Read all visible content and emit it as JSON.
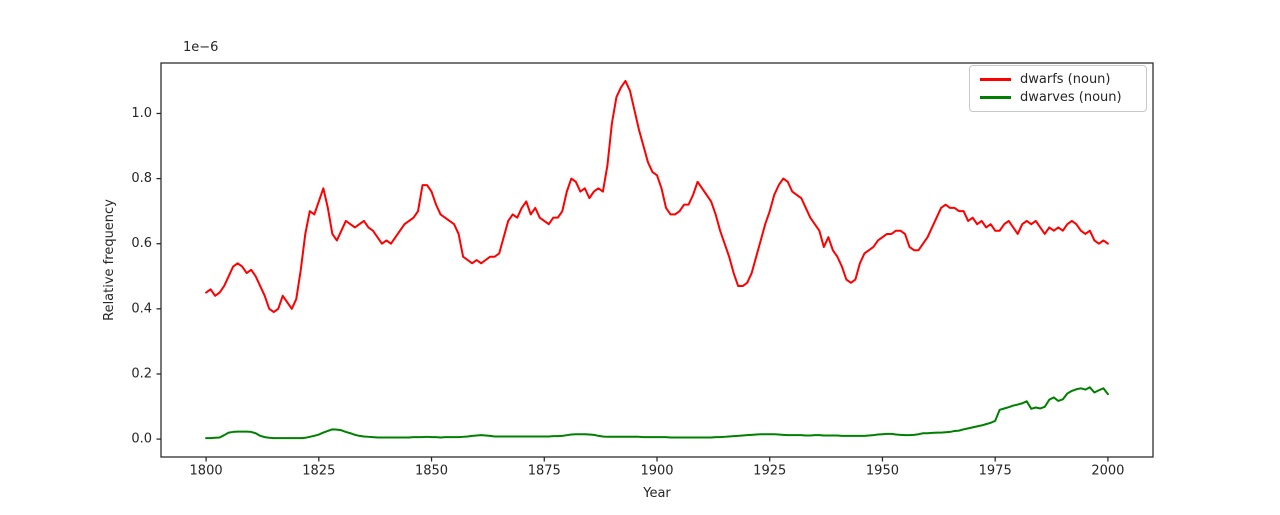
{
  "colors": {
    "background": "#ffffff",
    "text": "#262626",
    "spine": "#262626",
    "legend_border": "#c8c8c8",
    "dwarfs_red": "#ff0000",
    "dwarves_green": "#008000"
  },
  "chart_data": {
    "type": "line",
    "title": "",
    "xlabel": "Year",
    "ylabel": "Relative frequency",
    "offset_text": "1e−6",
    "y_values_unit": "1e-6",
    "grid": false,
    "legend_position": "upper right",
    "xlim": [
      1790,
      2010
    ],
    "ylim": [
      -0.055,
      1.155
    ],
    "xticks": [
      1800,
      1825,
      1850,
      1875,
      1900,
      1925,
      1950,
      1975,
      2000
    ],
    "xtick_labels": [
      "1800",
      "1825",
      "1850",
      "1875",
      "1900",
      "1925",
      "1950",
      "1975",
      "2000"
    ],
    "yticks": [
      0.0,
      0.2,
      0.4,
      0.6,
      0.8,
      1.0
    ],
    "ytick_labels": [
      "0.0",
      "0.2",
      "0.4",
      "0.6",
      "0.8",
      "1.0"
    ],
    "x_start": 1800,
    "x_step": 1,
    "x_end": 2000,
    "series": [
      {
        "name": "dwarfs (noun)",
        "color": "#ff0000",
        "values": [
          0.45,
          0.46,
          0.44,
          0.45,
          0.47,
          0.5,
          0.53,
          0.54,
          0.53,
          0.51,
          0.52,
          0.5,
          0.47,
          0.44,
          0.4,
          0.39,
          0.4,
          0.44,
          0.42,
          0.4,
          0.43,
          0.52,
          0.63,
          0.7,
          0.69,
          0.73,
          0.77,
          0.71,
          0.63,
          0.61,
          0.64,
          0.67,
          0.66,
          0.65,
          0.66,
          0.67,
          0.65,
          0.64,
          0.62,
          0.6,
          0.61,
          0.6,
          0.62,
          0.64,
          0.66,
          0.67,
          0.68,
          0.7,
          0.78,
          0.78,
          0.76,
          0.72,
          0.69,
          0.68,
          0.67,
          0.66,
          0.63,
          0.56,
          0.55,
          0.54,
          0.55,
          0.54,
          0.55,
          0.56,
          0.56,
          0.57,
          0.62,
          0.67,
          0.69,
          0.68,
          0.71,
          0.73,
          0.69,
          0.71,
          0.68,
          0.67,
          0.66,
          0.68,
          0.68,
          0.7,
          0.76,
          0.8,
          0.79,
          0.76,
          0.77,
          0.74,
          0.76,
          0.77,
          0.76,
          0.84,
          0.97,
          1.05,
          1.08,
          1.1,
          1.07,
          1.01,
          0.95,
          0.9,
          0.85,
          0.82,
          0.81,
          0.77,
          0.71,
          0.69,
          0.69,
          0.7,
          0.72,
          0.72,
          0.75,
          0.79,
          0.77,
          0.75,
          0.73,
          0.69,
          0.64,
          0.6,
          0.56,
          0.51,
          0.47,
          0.47,
          0.48,
          0.51,
          0.56,
          0.61,
          0.66,
          0.7,
          0.75,
          0.78,
          0.8,
          0.79,
          0.76,
          0.75,
          0.74,
          0.71,
          0.68,
          0.66,
          0.64,
          0.59,
          0.62,
          0.58,
          0.56,
          0.53,
          0.49,
          0.48,
          0.49,
          0.54,
          0.57,
          0.58,
          0.59,
          0.61,
          0.62,
          0.63,
          0.63,
          0.64,
          0.64,
          0.63,
          0.59,
          0.58,
          0.58,
          0.6,
          0.62,
          0.65,
          0.68,
          0.71,
          0.72,
          0.71,
          0.71,
          0.7,
          0.7,
          0.67,
          0.68,
          0.66,
          0.67,
          0.65,
          0.66,
          0.64,
          0.64,
          0.66,
          0.67,
          0.65,
          0.63,
          0.66,
          0.67,
          0.66,
          0.67,
          0.65,
          0.63,
          0.65,
          0.64,
          0.65,
          0.64,
          0.66,
          0.67,
          0.66,
          0.64,
          0.63,
          0.64,
          0.61,
          0.6,
          0.61,
          0.6
        ]
      },
      {
        "name": "dwarves (noun)",
        "color": "#008000",
        "values": [
          0.003,
          0.003,
          0.004,
          0.005,
          0.012,
          0.02,
          0.022,
          0.023,
          0.023,
          0.023,
          0.022,
          0.018,
          0.01,
          0.006,
          0.004,
          0.003,
          0.003,
          0.003,
          0.003,
          0.003,
          0.003,
          0.003,
          0.004,
          0.007,
          0.01,
          0.014,
          0.02,
          0.025,
          0.03,
          0.029,
          0.027,
          0.022,
          0.018,
          0.013,
          0.01,
          0.008,
          0.007,
          0.006,
          0.005,
          0.005,
          0.005,
          0.005,
          0.005,
          0.005,
          0.005,
          0.005,
          0.006,
          0.006,
          0.006,
          0.007,
          0.006,
          0.006,
          0.005,
          0.006,
          0.006,
          0.006,
          0.006,
          0.007,
          0.008,
          0.01,
          0.011,
          0.012,
          0.011,
          0.01,
          0.008,
          0.008,
          0.008,
          0.008,
          0.008,
          0.008,
          0.008,
          0.008,
          0.008,
          0.008,
          0.008,
          0.008,
          0.008,
          0.009,
          0.009,
          0.01,
          0.012,
          0.014,
          0.015,
          0.015,
          0.015,
          0.014,
          0.013,
          0.01,
          0.008,
          0.007,
          0.007,
          0.007,
          0.007,
          0.007,
          0.007,
          0.007,
          0.007,
          0.006,
          0.006,
          0.006,
          0.006,
          0.006,
          0.006,
          0.005,
          0.005,
          0.005,
          0.005,
          0.005,
          0.005,
          0.005,
          0.005,
          0.005,
          0.005,
          0.006,
          0.006,
          0.007,
          0.008,
          0.009,
          0.01,
          0.011,
          0.012,
          0.013,
          0.014,
          0.015,
          0.015,
          0.015,
          0.015,
          0.014,
          0.013,
          0.012,
          0.012,
          0.012,
          0.012,
          0.011,
          0.011,
          0.012,
          0.012,
          0.011,
          0.011,
          0.011,
          0.011,
          0.01,
          0.01,
          0.01,
          0.01,
          0.01,
          0.01,
          0.011,
          0.012,
          0.014,
          0.015,
          0.016,
          0.016,
          0.014,
          0.013,
          0.012,
          0.012,
          0.013,
          0.015,
          0.018,
          0.018,
          0.019,
          0.02,
          0.02,
          0.021,
          0.022,
          0.025,
          0.026,
          0.03,
          0.033,
          0.036,
          0.039,
          0.042,
          0.046,
          0.05,
          0.056,
          0.09,
          0.094,
          0.098,
          0.103,
          0.106,
          0.11,
          0.116,
          0.093,
          0.097,
          0.094,
          0.099,
          0.121,
          0.128,
          0.117,
          0.122,
          0.14,
          0.148,
          0.153,
          0.156,
          0.152,
          0.159,
          0.143,
          0.15,
          0.156,
          0.138
        ]
      }
    ]
  }
}
